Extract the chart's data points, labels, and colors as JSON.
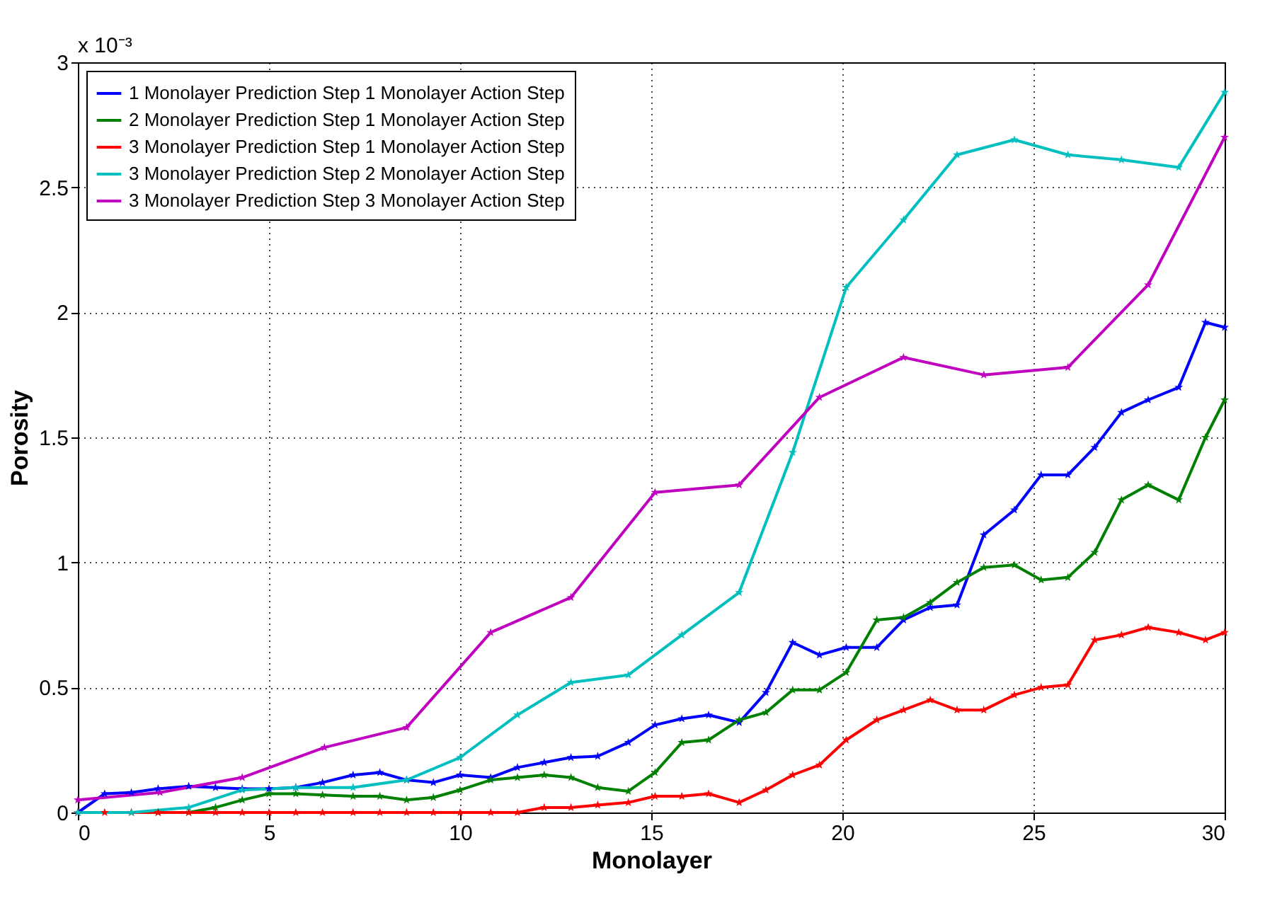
{
  "chart_data": {
    "type": "line",
    "xlabel": "Monolayer",
    "ylabel": "Porosity",
    "annotations": [
      "x 10⁻³"
    ],
    "xlim": [
      0,
      30
    ],
    "xticks": [
      0,
      5,
      10,
      15,
      20,
      25,
      30
    ],
    "ylim": [
      0,
      3
    ],
    "yticks": [
      0,
      0.5,
      1,
      1.5,
      2,
      2.5,
      3
    ],
    "grid": true,
    "legend": "top left",
    "marker": "star",
    "line_style": "solid",
    "series": [
      {
        "name": "1 Monolayer Prediction Step 1 Monolayer Action Step",
        "color": "#0000ff",
        "x": [
          0,
          0.7,
          1.4,
          2.1,
          2.9,
          3.6,
          4.3,
          5.0,
          5.7,
          6.4,
          7.2,
          7.9,
          8.6,
          9.3,
          10.0,
          10.8,
          11.5,
          12.2,
          12.9,
          13.6,
          14.4,
          15.1,
          15.8,
          16.5,
          17.3,
          18.0,
          18.7,
          19.4,
          20.1,
          20.9,
          21.6,
          22.3,
          23.0,
          23.7,
          24.5,
          25.2,
          25.9,
          26.6,
          27.3,
          28.0,
          28.8,
          29.5,
          30
        ],
        "values": [
          0,
          0.075,
          0.08,
          0.095,
          0.105,
          0.1,
          0.095,
          0.095,
          0.1,
          0.12,
          0.15,
          0.16,
          0.13,
          0.12,
          0.15,
          0.14,
          0.18,
          0.2,
          0.22,
          0.225,
          0.28,
          0.35,
          0.375,
          0.39,
          0.36,
          0.48,
          0.68,
          0.63,
          0.66,
          0.66,
          0.77,
          0.82,
          0.83,
          1.11,
          1.21,
          1.35,
          1.35,
          1.46,
          1.6,
          1.65,
          1.7,
          1.96,
          1.94
        ]
      },
      {
        "name": "2 Monolayer Prediction Step 1 Monolayer Action Step",
        "color": "#008000",
        "x": [
          1.4,
          2.1,
          2.9,
          3.6,
          4.3,
          5.0,
          5.7,
          6.4,
          7.2,
          7.9,
          8.6,
          9.3,
          10.0,
          10.8,
          11.5,
          12.2,
          12.9,
          13.6,
          14.4,
          15.1,
          15.8,
          16.5,
          17.3,
          18.0,
          18.7,
          19.4,
          20.1,
          20.9,
          21.6,
          22.3,
          23.0,
          23.7,
          24.5,
          25.2,
          25.9,
          26.6,
          27.3,
          28.0,
          28.8,
          29.5,
          30
        ],
        "values": [
          0,
          0,
          0,
          0.02,
          0.05,
          0.075,
          0.075,
          0.07,
          0.065,
          0.065,
          0.05,
          0.06,
          0.09,
          0.13,
          0.14,
          0.15,
          0.14,
          0.1,
          0.085,
          0.16,
          0.28,
          0.29,
          0.37,
          0.4,
          0.49,
          0.49,
          0.56,
          0.77,
          0.78,
          0.84,
          0.92,
          0.98,
          0.99,
          0.93,
          0.94,
          1.04,
          1.25,
          1.31,
          1.25,
          1.5,
          1.65
        ]
      },
      {
        "name": "3 Monolayer Prediction Step 1 Monolayer Action Step",
        "color": "#ff0000",
        "x": [
          0,
          0.7,
          1.4,
          2.1,
          2.9,
          3.6,
          4.3,
          5.0,
          5.7,
          6.4,
          7.2,
          7.9,
          8.6,
          9.3,
          10.0,
          10.8,
          11.5,
          12.2,
          12.9,
          13.6,
          14.4,
          15.1,
          15.8,
          16.5,
          17.3,
          18.0,
          18.7,
          19.4,
          20.1,
          20.9,
          21.6,
          22.3,
          23.0,
          23.7,
          24.5,
          25.2,
          25.9,
          26.6,
          27.3,
          28.0,
          28.8,
          29.5,
          30
        ],
        "values": [
          0,
          0,
          0,
          0,
          0,
          0,
          0,
          0,
          0,
          0,
          0,
          0,
          0,
          0,
          0,
          0,
          0,
          0.02,
          0.02,
          0.03,
          0.04,
          0.065,
          0.065,
          0.075,
          0.04,
          0.09,
          0.15,
          0.19,
          0.29,
          0.37,
          0.41,
          0.45,
          0.41,
          0.41,
          0.47,
          0.5,
          0.51,
          0.69,
          0.71,
          0.74,
          0.72,
          0.69,
          0.72
        ]
      },
      {
        "name": "3 Monolayer Prediction Step 2 Monolayer Action Step",
        "color": "#00bfbf",
        "x": [
          0,
          1.4,
          2.9,
          4.3,
          5.7,
          7.2,
          8.6,
          10.0,
          11.5,
          12.9,
          14.4,
          15.8,
          17.3,
          18.7,
          20.1,
          21.6,
          23.0,
          24.5,
          25.9,
          27.3,
          28.8,
          30
        ],
        "values": [
          0,
          0,
          0.02,
          0.09,
          0.1,
          0.1,
          0.13,
          0.22,
          0.39,
          0.52,
          0.55,
          0.71,
          0.88,
          1.44,
          2.1,
          2.37,
          2.63,
          2.69,
          2.63,
          2.61,
          2.58,
          2.88
        ]
      },
      {
        "name": "3 Monolayer Prediction Step 3 Monolayer Action Step",
        "color": "#bf00bf",
        "x": [
          0,
          2.15,
          4.3,
          6.45,
          8.6,
          10.8,
          12.9,
          15.1,
          17.3,
          19.4,
          21.6,
          23.7,
          25.9,
          28.0,
          30
        ],
        "values": [
          0.05,
          0.08,
          0.14,
          0.26,
          0.34,
          0.72,
          0.86,
          1.28,
          1.31,
          1.66,
          1.82,
          1.75,
          1.78,
          2.11,
          2.7
        ]
      }
    ]
  }
}
